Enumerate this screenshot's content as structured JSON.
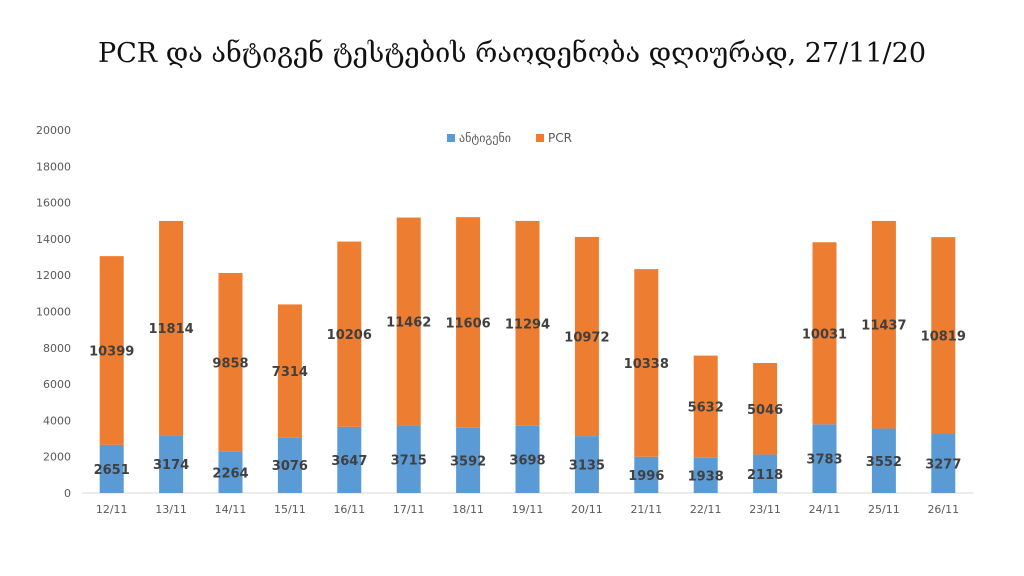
{
  "chart_data": {
    "type": "bar",
    "stacked": true,
    "title": "PCR და ანტიგენ ტესტების რაოდენობა დღიურად, 27/11/20",
    "categories": [
      "12/11",
      "13/11",
      "14/11",
      "15/11",
      "16/11",
      "17/11",
      "18/11",
      "19/11",
      "20/11",
      "21/11",
      "22/11",
      "23/11",
      "24/11",
      "25/11",
      "26/11"
    ],
    "series": [
      {
        "name": "ანტიგენი",
        "color": "#5B9BD5",
        "values": [
          2651,
          3174,
          2264,
          3076,
          3647,
          3715,
          3592,
          3698,
          3135,
          1996,
          1938,
          2118,
          3783,
          3552,
          3277
        ]
      },
      {
        "name": "PCR",
        "color": "#ED7D31",
        "values": [
          10399,
          11814,
          9858,
          7314,
          10206,
          11462,
          11606,
          11294,
          10972,
          10338,
          5632,
          5046,
          10031,
          11437,
          10819
        ]
      }
    ],
    "ylim": [
      0,
      20000
    ],
    "yticks": [
      0,
      2000,
      4000,
      6000,
      8000,
      10000,
      12000,
      14000,
      16000,
      18000,
      20000
    ],
    "xlabel": "",
    "ylabel": "",
    "legend_position": "top-center",
    "grid": false
  }
}
